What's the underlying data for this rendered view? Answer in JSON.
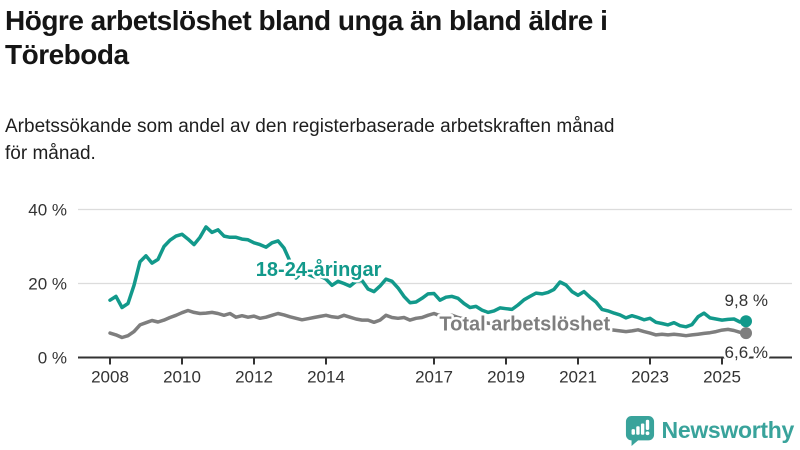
{
  "header": {
    "title": "Högre arbetslöshet bland unga än bland äldre i\nTöreboda",
    "subtitle": "Arbetssökande som andel av den registerbaserade arbetskraften månad\nför månad."
  },
  "footer": {
    "brand": "Newsworthy",
    "logo_icon": "bar-chart-speech-bubble-icon"
  },
  "colors": {
    "young_line": "#12998b",
    "total_line": "#7e7e7e",
    "grid": "#dcdcdc",
    "axis": "#333333",
    "annotation_text": "#333333",
    "title_text": "#151515",
    "brand_teal": "#39a39b",
    "background": "#ffffff"
  },
  "chart_data": {
    "type": "line",
    "title": "Högre arbetslöshet bland unga än bland äldre i Töreboda",
    "ylabel": "",
    "xlabel": "",
    "ylim": [
      0,
      43
    ],
    "axis_x_span_years": [
      2007.1,
      2026.9
    ],
    "grid": "horizontal-only",
    "legend_position": "inline-labels-on-lines",
    "y_ticks": [
      {
        "value": 0,
        "label": "0 %"
      },
      {
        "value": 20,
        "label": "20 %"
      },
      {
        "value": 40,
        "label": "40 %"
      }
    ],
    "x_ticks": [
      {
        "value": 2008,
        "label": "2008"
      },
      {
        "value": 2010,
        "label": "2010"
      },
      {
        "value": 2012,
        "label": "2012"
      },
      {
        "value": 2014,
        "label": "2014"
      },
      {
        "value": 2017,
        "label": "2017"
      },
      {
        "value": 2019,
        "label": "2019"
      },
      {
        "value": 2021,
        "label": "2021"
      },
      {
        "value": 2023,
        "label": "2023"
      },
      {
        "value": 2025,
        "label": "2025"
      }
    ],
    "x": [
      2008,
      2008.167,
      2008.333,
      2008.5,
      2008.667,
      2008.833,
      2009,
      2009.167,
      2009.333,
      2009.5,
      2009.667,
      2009.833,
      2010,
      2010.167,
      2010.333,
      2010.5,
      2010.667,
      2010.833,
      2011,
      2011.167,
      2011.333,
      2011.5,
      2011.667,
      2011.833,
      2012,
      2012.167,
      2012.333,
      2012.5,
      2012.667,
      2012.833,
      2013,
      2013.167,
      2013.333,
      2013.5,
      2013.667,
      2013.833,
      2014,
      2014.167,
      2014.333,
      2014.5,
      2014.667,
      2014.833,
      2015,
      2015.167,
      2015.333,
      2015.5,
      2015.667,
      2015.833,
      2016,
      2016.167,
      2016.333,
      2016.5,
      2016.667,
      2016.833,
      2017,
      2017.167,
      2017.333,
      2017.5,
      2017.667,
      2017.833,
      2018,
      2018.167,
      2018.333,
      2018.5,
      2018.667,
      2018.833,
      2019,
      2019.167,
      2019.333,
      2019.5,
      2019.667,
      2019.833,
      2020,
      2020.167,
      2020.333,
      2020.5,
      2020.667,
      2020.833,
      2021,
      2021.167,
      2021.333,
      2021.5,
      2021.667,
      2021.833,
      2022,
      2022.167,
      2022.333,
      2022.5,
      2022.667,
      2022.833,
      2023,
      2023.167,
      2023.333,
      2023.5,
      2023.667,
      2023.833,
      2024,
      2024.167,
      2024.333,
      2024.5,
      2024.667,
      2024.833,
      2025,
      2025.167,
      2025.333,
      2025.5,
      2025.667
    ],
    "series": [
      {
        "name": "Total arbetslöshet",
        "color": "#7e7e7e",
        "end_label": "6,6 %",
        "end_label_position": "below",
        "label_anchor": {
          "x": 2017.15,
          "y": 7.3
        },
        "values": [
          6.6,
          6.1,
          5.4,
          5.9,
          7.0,
          8.8,
          9.4,
          10.0,
          9.6,
          10.1,
          10.8,
          11.4,
          12.1,
          12.7,
          12.2,
          11.9,
          12.0,
          12.2,
          11.9,
          11.4,
          11.9,
          10.9,
          11.3,
          10.9,
          11.2,
          10.6,
          10.9,
          11.4,
          11.9,
          11.5,
          11.0,
          10.6,
          10.2,
          10.5,
          10.8,
          11.1,
          11.4,
          11.0,
          10.8,
          11.4,
          10.9,
          10.4,
          10.1,
          10.1,
          9.5,
          10.1,
          11.4,
          10.8,
          10.6,
          10.8,
          10.1,
          10.6,
          10.8,
          11.4,
          11.9,
          11.3,
          11.0,
          11.4,
          10.8,
          10.4,
          10.2,
          9.9,
          9.6,
          9.3,
          9.0,
          8.8,
          8.6,
          8.4,
          8.3,
          8.2,
          8.1,
          8.3,
          8.6,
          8.9,
          9.4,
          9.6,
          9.5,
          9.3,
          9.1,
          8.9,
          8.6,
          8.3,
          7.9,
          7.6,
          7.4,
          7.2,
          7.0,
          7.2,
          7.5,
          7.0,
          6.6,
          6.1,
          6.3,
          6.1,
          6.3,
          6.1,
          5.9,
          6.1,
          6.3,
          6.5,
          6.7,
          7.0,
          7.4,
          7.6,
          7.3,
          6.8,
          6.6
        ]
      },
      {
        "name": "18-24-åringar",
        "color": "#12998b",
        "end_label": "9,8 %",
        "end_label_position": "above",
        "label_anchor": {
          "x": 2012.05,
          "y": 22.0
        },
        "values": [
          15.5,
          16.5,
          13.5,
          14.6,
          19.5,
          25.9,
          27.5,
          25.5,
          26.5,
          30.0,
          31.7,
          32.8,
          33.3,
          32.0,
          30.5,
          32.5,
          35.3,
          33.8,
          34.5,
          32.8,
          32.5,
          32.5,
          32.0,
          31.8,
          31.0,
          30.5,
          29.8,
          31.0,
          31.5,
          29.6,
          26.0,
          21.5,
          23.0,
          22.5,
          21.8,
          22.0,
          21.2,
          19.5,
          20.6,
          20.0,
          19.3,
          20.6,
          20.8,
          18.5,
          17.8,
          19.3,
          21.2,
          20.6,
          18.8,
          16.5,
          14.8,
          15.0,
          16.0,
          17.2,
          17.3,
          15.5,
          16.3,
          16.5,
          16.0,
          14.6,
          13.5,
          13.8,
          12.8,
          12.2,
          12.6,
          13.4,
          13.2,
          13.0,
          14.2,
          15.6,
          16.5,
          17.4,
          17.2,
          17.6,
          18.4,
          20.4,
          19.6,
          17.8,
          16.8,
          17.8,
          16.3,
          15.0,
          13.0,
          12.6,
          12.0,
          11.5,
          10.7,
          11.3,
          10.8,
          10.2,
          10.6,
          9.5,
          9.2,
          8.8,
          9.4,
          8.6,
          8.3,
          8.9,
          11.0,
          12.0,
          10.7,
          10.4,
          10.1,
          10.3,
          10.4,
          9.6,
          9.8
        ]
      }
    ]
  }
}
